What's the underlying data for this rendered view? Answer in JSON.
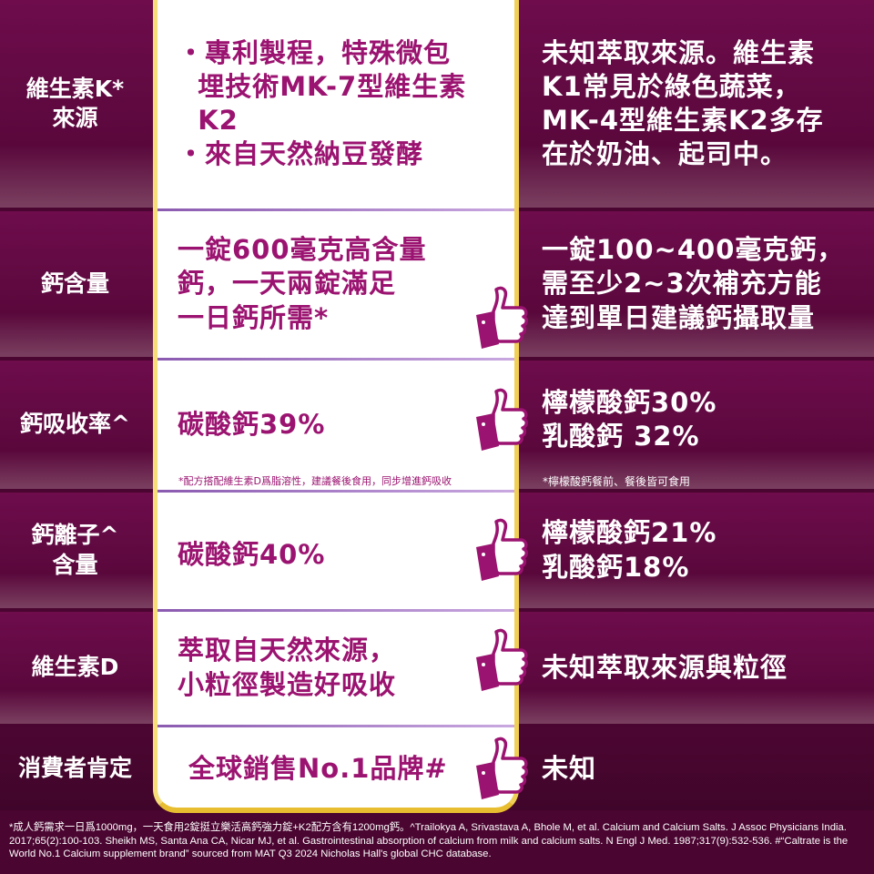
{
  "rows": [
    {
      "label": "維生素K*\n來源",
      "ours": [
        "・專利製程，特殊微包",
        "  埋技術MK-7型維生素",
        "  K2",
        "・來自天然納豆發酵"
      ],
      "theirs": [
        "未知萃取來源。維生素",
        "K1常見於綠色蔬菜，",
        "MK-4型維生素K2多存",
        "在於奶油、起司中。"
      ]
    },
    {
      "label": "鈣含量",
      "ours": [
        "一錠600毫克高含量",
        "鈣，一天兩錠滿足",
        "一日鈣所需*"
      ],
      "theirs": [
        "一錠100~400毫克鈣，",
        "需至少2~3次補充方能",
        "達到單日建議鈣攝取量"
      ]
    },
    {
      "label": "鈣吸收率^",
      "ours": [
        "碳酸鈣39%"
      ],
      "theirs": [
        "檸檬酸鈣30%",
        "乳酸鈣 32%"
      ],
      "ours_note": "*配方搭配維生素D爲脂溶性，建議餐後食用，同步增進鈣吸收",
      "theirs_note": "*檸檬酸鈣餐前、餐後皆可食用"
    },
    {
      "label": "鈣離子^\n含量",
      "ours": [
        "碳酸鈣40%"
      ],
      "theirs": [
        "檸檬酸鈣21%",
        "乳酸鈣18%"
      ]
    },
    {
      "label": "維生素D",
      "ours": [
        "萃取自天然來源，",
        "小粒徑製造好吸收"
      ],
      "theirs": [
        "未知萃取來源與粒徑"
      ]
    },
    {
      "label": "消費者肯定",
      "ours": [
        "全球銷售No.1品牌#"
      ],
      "theirs": [
        "未知"
      ]
    }
  ],
  "footer": "*成人鈣需求一日爲1000mg，一天食用2錠挺立樂活高鈣強力錠+K2配方含有1200mg鈣。^Trailokya A, Srivastava A, Bhole M, et al. Calcium and Calcium Salts. J Assoc Physicians India. 2017;65(2):100-103. Sheikh MS, Santa Ana CA, Nicar MJ, et al. Gastrointestinal absorption of calcium from milk and calcium salts. N Engl J Med. 1987;317(9):532-536. #“Caltrate is the World No.1 Calcium supplement brand” sourced from MAT Q3 2024 Nicholas Hall's global CHC database.",
  "colors": {
    "accent": "#9b1370",
    "background": "#5a083c",
    "border": "#f0cf55"
  },
  "icons": [
    "thumbs-up-icon"
  ]
}
